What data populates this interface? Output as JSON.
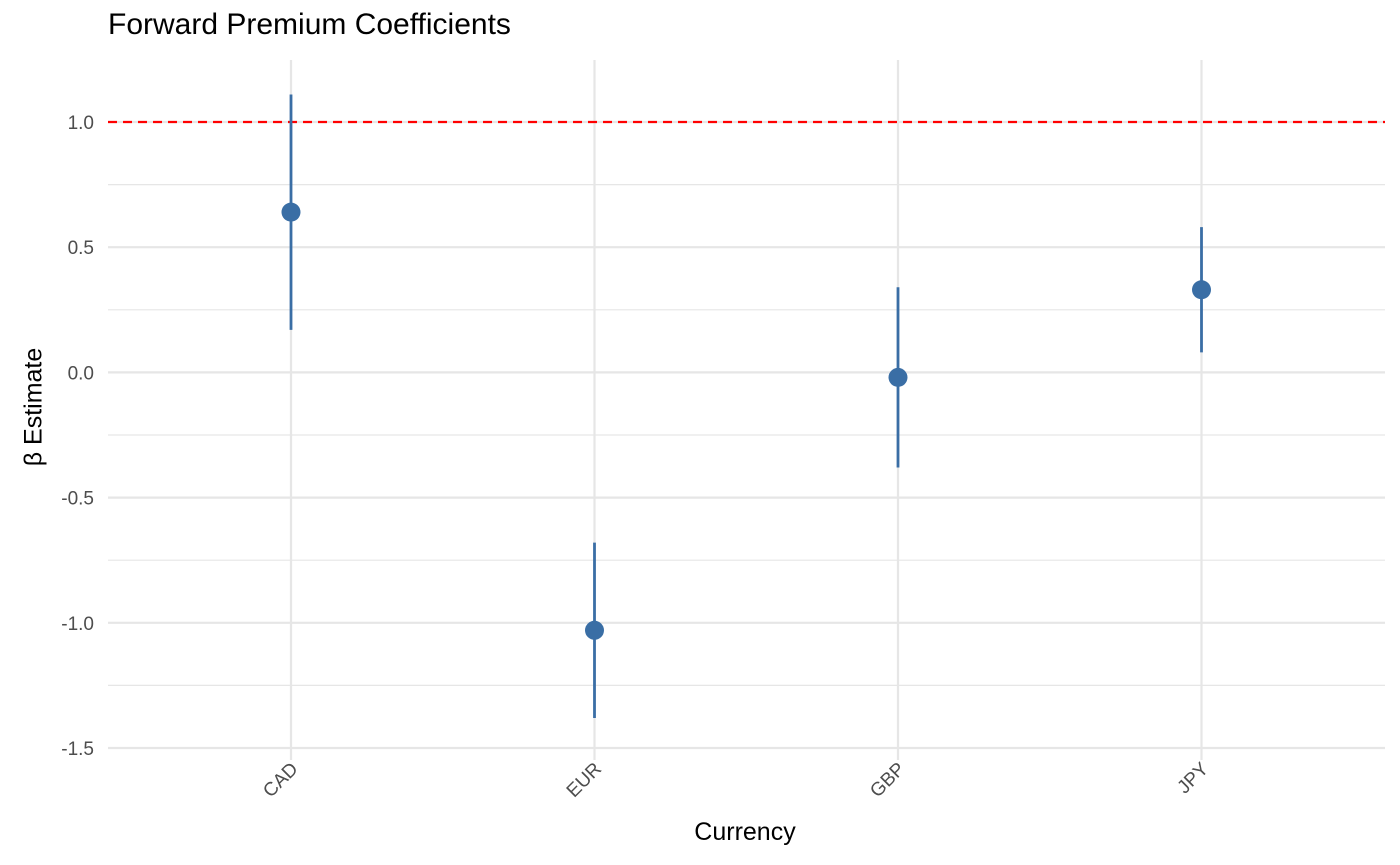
{
  "chart_data": {
    "type": "scatter",
    "title": "Forward Premium Coefficients",
    "xlabel": "Currency",
    "ylabel": "β Estimate",
    "categories": [
      "CAD",
      "EUR",
      "GBP",
      "JPY"
    ],
    "estimates": [
      0.64,
      -1.03,
      -0.02,
      0.33
    ],
    "ci_lower": [
      0.17,
      -1.38,
      -0.38,
      0.08
    ],
    "ci_upper": [
      1.11,
      -0.68,
      0.34,
      0.58
    ],
    "reference_line": {
      "y": 1.0,
      "color": "#ff0000",
      "style": "dashed"
    },
    "yticks": [
      "1.0",
      "0.5",
      "0.0",
      "-0.5",
      "-1.0",
      "-1.5"
    ],
    "ylim": [
      -1.5,
      1.2
    ],
    "grid": true,
    "legend": "none",
    "point_color": "#3a6ea5",
    "grid_color": "#e6e6e6",
    "tick_label_color": "#4d4d4d"
  }
}
